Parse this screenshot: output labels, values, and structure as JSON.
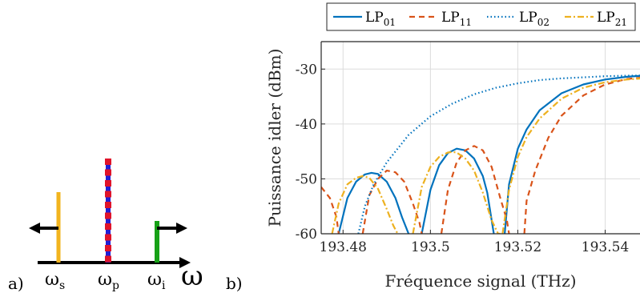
{
  "panel_a": {
    "label": "a)",
    "omega_s": "ω",
    "omega_s_sub": "s",
    "omega_p": "ω",
    "omega_p_sub": "p",
    "omega_i": "ω",
    "omega_i_sub": "i",
    "axis_symbol": "ω",
    "colors": {
      "signal": "#f2b41e",
      "pump_blue": "#1f1fd6",
      "pump_red": "#e0142a",
      "idler": "#17a117"
    }
  },
  "panel_b": {
    "label": "b)"
  },
  "chart_data": {
    "type": "line",
    "xlabel": "Fréquence signal (THz)",
    "ylabel": "Puissance idler (dBm)",
    "xlim": [
      193.475,
      193.552
    ],
    "ylim": [
      -60,
      -25
    ],
    "xticks": [
      193.48,
      193.5,
      193.52,
      193.54
    ],
    "xtick_labels": [
      "193.48",
      "193.5",
      "193.52",
      "193.54"
    ],
    "yticks": [
      -60,
      -50,
      -40,
      -30
    ],
    "ytick_labels": [
      "-60",
      "-50",
      "-40",
      "-30"
    ],
    "grid": true,
    "legend_position": "top",
    "series": [
      {
        "name": "LP",
        "name_sub": "01",
        "color": "#0072bd",
        "dash": "solid",
        "x": [
          193.479,
          193.481,
          193.483,
          193.485,
          193.4865,
          193.488,
          193.49,
          193.492,
          193.4935,
          193.495,
          193.4965,
          193.498,
          193.5,
          193.502,
          193.504,
          193.506,
          193.508,
          193.51,
          193.512,
          193.513,
          193.5145,
          193.516,
          193.517,
          193.518,
          193.52,
          193.522,
          193.525,
          193.53,
          193.535,
          193.54,
          193.545,
          193.552
        ],
        "y": [
          -60,
          -53.5,
          -50.5,
          -49.2,
          -48.9,
          -49.1,
          -50.5,
          -53.5,
          -57,
          -60,
          null,
          -60,
          -52,
          -47.5,
          -45.3,
          -44.5,
          -44.8,
          -46.3,
          -49.5,
          -52.5,
          -60,
          null,
          -60,
          -51,
          -44.5,
          -41,
          -37.5,
          -34.4,
          -32.8,
          -31.9,
          -31.4,
          -31
        ]
      },
      {
        "name": "LP",
        "name_sub": "11",
        "color": "#d95319",
        "dash": "dashed",
        "x": [
          193.475,
          193.477,
          193.4785,
          193.479,
          null,
          193.4845,
          193.486,
          193.488,
          193.49,
          193.492,
          193.494,
          193.496,
          193.4975,
          193.498,
          null,
          193.5025,
          193.504,
          193.506,
          193.508,
          193.51,
          193.512,
          193.514,
          193.516,
          193.5175,
          193.518,
          null,
          193.5215,
          193.522,
          193.524,
          193.527,
          193.53,
          193.535,
          193.54,
          193.545,
          193.552
        ],
        "y": [
          -51.5,
          -53.5,
          -57,
          -60,
          null,
          -60,
          -53,
          -50,
          -48.5,
          -48.8,
          -50.5,
          -54.5,
          -58,
          -60,
          null,
          -60,
          -52,
          -47,
          -44.8,
          -44,
          -44.8,
          -47.8,
          -53.5,
          -57.5,
          -60,
          null,
          -60,
          -54,
          -48.5,
          -42.5,
          -38.5,
          -34.8,
          -32.8,
          -31.8,
          -31.3
        ]
      },
      {
        "name": "LP",
        "name_sub": "02",
        "color": "#0072bd",
        "dash": "dotted",
        "x": [
          193.4835,
          193.485,
          193.487,
          193.49,
          193.495,
          193.5,
          193.505,
          193.51,
          193.515,
          193.52,
          193.525,
          193.53,
          193.535,
          193.54,
          193.545,
          193.552
        ],
        "y": [
          -60,
          -55,
          -51,
          -47,
          -42,
          -38.6,
          -36.3,
          -34.6,
          -33.4,
          -32.6,
          -32,
          -31.7,
          -31.5,
          -31.3,
          -31.2,
          -31.15
        ]
      },
      {
        "name": "LP",
        "name_sub": "21",
        "color": "#edb120",
        "dash": "dashdot",
        "x": [
          193.4775,
          193.479,
          193.481,
          193.483,
          193.4845,
          193.486,
          193.488,
          193.49,
          193.4915,
          193.4925,
          null,
          193.496,
          193.498,
          193.5,
          193.502,
          193.504,
          193.505,
          193.506,
          193.508,
          193.51,
          193.512,
          193.514,
          193.5155,
          193.516,
          null,
          193.5165,
          193.518,
          193.52,
          193.522,
          193.525,
          193.53,
          193.535,
          193.54,
          193.545,
          193.552
        ],
        "y": [
          -60,
          -54.5,
          -51,
          -49.8,
          -49.5,
          -49.8,
          -51.8,
          -55.5,
          -58.5,
          -60,
          null,
          -60,
          -51.5,
          -47.8,
          -46,
          -45.2,
          -45.1,
          -45.2,
          -46.3,
          -48.5,
          -52.5,
          -57.5,
          -60,
          -60,
          null,
          -60,
          -52,
          -46,
          -42.4,
          -39,
          -35.4,
          -33.4,
          -32.4,
          -31.9,
          -31.5
        ]
      }
    ]
  }
}
